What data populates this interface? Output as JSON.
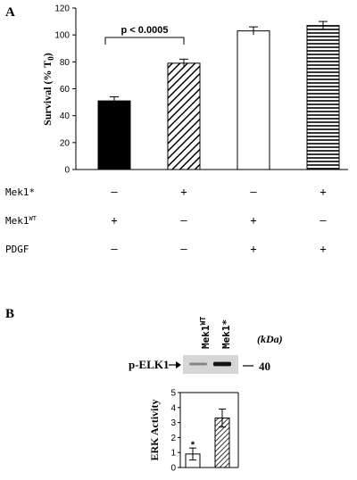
{
  "panel_a_letter": "A",
  "panel_b_letter": "B",
  "chart_data": [
    {
      "type": "bar",
      "ylabel": "Survival (% T",
      "ylabel_sub": "0",
      "ylabel_close": ")",
      "ylim": [
        0,
        120
      ],
      "yticks": [
        "0",
        "20",
        "40",
        "60",
        "80",
        "100",
        "120"
      ],
      "values": [
        51,
        79,
        103,
        107
      ],
      "errors": [
        3,
        3,
        3,
        3
      ],
      "fills": [
        "solid-black",
        "diagonal-hatch",
        "white",
        "horizontal-hatch"
      ],
      "significance": {
        "text": "p < 0.0005",
        "between": [
          0,
          1
        ]
      },
      "conditions": [
        {
          "label": "Mek1*",
          "signs": [
            "–",
            "+",
            "–",
            "+"
          ]
        },
        {
          "label": "Mek1",
          "sup": "WT",
          "signs": [
            "+",
            "–",
            "+",
            "–"
          ]
        },
        {
          "label": "PDGF",
          "signs": [
            "–",
            "–",
            "+",
            "+"
          ]
        }
      ],
      "grid": false,
      "legend": "none"
    },
    {
      "type": "bar",
      "ylabel": "ERK Activity",
      "ylim": [
        0,
        5
      ],
      "yticks": [
        "0",
        "1",
        "2",
        "3",
        "4",
        "5"
      ],
      "values": [
        0.9,
        3.3
      ],
      "errors": [
        0.4,
        0.6
      ],
      "fills": [
        "white",
        "diagonal-hatch"
      ],
      "annotation": "*",
      "grid": false,
      "legend": "none"
    }
  ],
  "blot": {
    "band_label": "p-ELK1",
    "lanes": [
      {
        "name": "Mek1",
        "sup": "WT"
      },
      {
        "name": "Mek1*",
        "sup": ""
      }
    ],
    "units": "(kDa)",
    "marker": "40",
    "band_intensity": [
      0.35,
      0.95
    ]
  }
}
